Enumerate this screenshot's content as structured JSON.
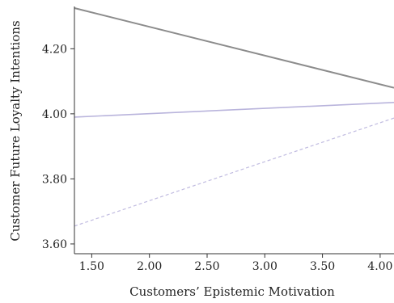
{
  "chart_data": {
    "type": "line",
    "title": "",
    "xlabel": "Customers’ Epistemic Motivation",
    "ylabel": "Customer Future Loyalty Intentions",
    "xlim": [
      1.35,
      4.12
    ],
    "ylim": [
      3.57,
      4.33
    ],
    "x_ticks": [
      1.5,
      2.0,
      2.5,
      3.0,
      3.5,
      4.0
    ],
    "x_tick_labels": [
      "1.50",
      "2.00",
      "2.50",
      "3.00",
      "3.50",
      "4.00"
    ],
    "y_ticks": [
      3.6,
      3.8,
      4.0,
      4.2
    ],
    "y_tick_labels": [
      "3.60",
      "3.80",
      "4.00",
      "4.20"
    ],
    "grid": false,
    "series": [
      {
        "color": "#8c8c8c",
        "style": "solid",
        "width": 2,
        "x": [
          1.35,
          4.12
        ],
        "y": [
          4.325,
          4.08
        ]
      },
      {
        "color": "#b9b4dc",
        "style": "solid",
        "width": 1.6,
        "x": [
          1.35,
          4.12
        ],
        "y": [
          3.99,
          4.035
        ]
      },
      {
        "color": "#c0bbe0",
        "style": "dashed",
        "width": 1.2,
        "x": [
          1.35,
          4.12
        ],
        "y": [
          3.655,
          3.987
        ]
      }
    ]
  }
}
